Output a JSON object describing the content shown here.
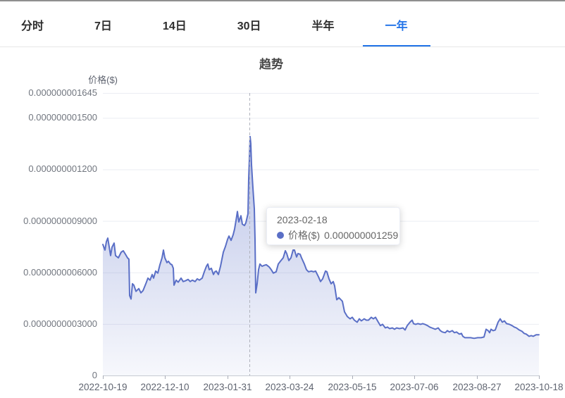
{
  "tabs": {
    "items": [
      {
        "label": "分时",
        "active": false
      },
      {
        "label": "7日",
        "active": false
      },
      {
        "label": "14日",
        "active": false
      },
      {
        "label": "30日",
        "active": false
      },
      {
        "label": "半年",
        "active": false
      },
      {
        "label": "一年",
        "active": true
      }
    ]
  },
  "chart_data": {
    "type": "area",
    "title": "趋势",
    "legend_position": "none",
    "grid": true,
    "y_axis": {
      "name": "价格($)",
      "max": 1645,
      "ticks": [
        {
          "label": "0",
          "value": 0
        },
        {
          "label": "0.0000000003000",
          "value": 300
        },
        {
          "label": "0.0000000006000",
          "value": 600
        },
        {
          "label": "0.0000000009000",
          "value": 900
        },
        {
          "label": "0.000000001200",
          "value": 1200
        },
        {
          "label": "0.000000001500",
          "value": 1500
        },
        {
          "label": "0.000000001645",
          "value": 1645
        }
      ]
    },
    "x_axis": {
      "start": "2022-10-19",
      "end": "2023-10-18",
      "span": 619,
      "ticks": [
        {
          "label": "2022-10-19",
          "pos": 0
        },
        {
          "label": "2022-12-10",
          "pos": 88
        },
        {
          "label": "2023-01-31",
          "pos": 177
        },
        {
          "label": "2023-03-24",
          "pos": 265
        },
        {
          "label": "2023-05-15",
          "pos": 354
        },
        {
          "label": "2023-07-06",
          "pos": 442
        },
        {
          "label": "2023-08-27",
          "pos": 531
        },
        {
          "label": "2023-10-18",
          "pos": 619
        }
      ]
    },
    "value_unit": "1e-12 $",
    "series": [
      {
        "name": "价格($)",
        "color": "#5a6fc6",
        "fill_top": "rgba(90,111,198,0.42)",
        "fill_bottom": "rgba(90,111,198,0.05)",
        "points": [
          [
            0,
            763
          ],
          [
            3,
            730
          ],
          [
            5,
            779
          ],
          [
            7,
            800
          ],
          [
            11,
            698
          ],
          [
            13,
            747
          ],
          [
            16,
            771
          ],
          [
            18,
            698
          ],
          [
            22,
            685
          ],
          [
            26,
            718
          ],
          [
            29,
            726
          ],
          [
            32,
            706
          ],
          [
            35,
            685
          ],
          [
            37,
            677
          ],
          [
            38,
            465
          ],
          [
            40,
            445
          ],
          [
            42,
            534
          ],
          [
            44,
            526
          ],
          [
            47,
            490
          ],
          [
            51,
            506
          ],
          [
            54,
            481
          ],
          [
            57,
            494
          ],
          [
            61,
            534
          ],
          [
            64,
            567
          ],
          [
            67,
            555
          ],
          [
            70,
            588
          ],
          [
            72,
            567
          ],
          [
            75,
            608
          ],
          [
            78,
            596
          ],
          [
            81,
            645
          ],
          [
            84,
            685
          ],
          [
            86,
            730
          ],
          [
            88,
            685
          ],
          [
            91,
            657
          ],
          [
            93,
            665
          ],
          [
            96,
            649
          ],
          [
            98,
            645
          ],
          [
            100,
            624
          ],
          [
            101,
            526
          ],
          [
            104,
            555
          ],
          [
            107,
            543
          ],
          [
            111,
            567
          ],
          [
            114,
            547
          ],
          [
            117,
            551
          ],
          [
            121,
            559
          ],
          [
            124,
            547
          ],
          [
            127,
            555
          ],
          [
            131,
            547
          ],
          [
            134,
            563
          ],
          [
            137,
            555
          ],
          [
            141,
            567
          ],
          [
            144,
            604
          ],
          [
            147,
            636
          ],
          [
            149,
            649
          ],
          [
            151,
            616
          ],
          [
            154,
            624
          ],
          [
            157,
            588
          ],
          [
            159,
            604
          ],
          [
            161,
            608
          ],
          [
            164,
            588
          ],
          [
            167,
            636
          ],
          [
            169,
            677
          ],
          [
            171,
            718
          ],
          [
            174,
            751
          ],
          [
            177,
            792
          ],
          [
            179,
            812
          ],
          [
            182,
            787
          ],
          [
            185,
            820
          ],
          [
            187,
            853
          ],
          [
            189,
            902
          ],
          [
            191,
            955
          ],
          [
            193,
            894
          ],
          [
            196,
            930
          ],
          [
            198,
            881
          ],
          [
            201,
            873
          ],
          [
            203,
            889
          ],
          [
            206,
            942
          ],
          [
            207,
            1146
          ],
          [
            208,
            1259
          ],
          [
            209,
            1391
          ],
          [
            210,
            1350
          ],
          [
            211,
            1228
          ],
          [
            213,
            1093
          ],
          [
            215,
            971
          ],
          [
            216,
            792
          ],
          [
            217,
            481
          ],
          [
            219,
            534
          ],
          [
            221,
            616
          ],
          [
            223,
            649
          ],
          [
            226,
            636
          ],
          [
            229,
            641
          ],
          [
            232,
            645
          ],
          [
            236,
            632
          ],
          [
            239,
            616
          ],
          [
            242,
            596
          ],
          [
            246,
            604
          ],
          [
            249,
            649
          ],
          [
            252,
            665
          ],
          [
            256,
            685
          ],
          [
            259,
            726
          ],
          [
            261,
            710
          ],
          [
            264,
            669
          ],
          [
            267,
            685
          ],
          [
            270,
            730
          ],
          [
            272,
            730
          ],
          [
            275,
            690
          ],
          [
            277,
            710
          ],
          [
            280,
            706
          ],
          [
            282,
            685
          ],
          [
            286,
            649
          ],
          [
            289,
            616
          ],
          [
            292,
            604
          ],
          [
            296,
            608
          ],
          [
            299,
            604
          ],
          [
            302,
            608
          ],
          [
            306,
            575
          ],
          [
            309,
            547
          ],
          [
            312,
            563
          ],
          [
            316,
            608
          ],
          [
            318,
            604
          ],
          [
            321,
            563
          ],
          [
            324,
            534
          ],
          [
            327,
            547
          ],
          [
            329,
            522
          ],
          [
            332,
            441
          ],
          [
            335,
            453
          ],
          [
            337,
            445
          ],
          [
            340,
            432
          ],
          [
            343,
            371
          ],
          [
            347,
            343
          ],
          [
            351,
            330
          ],
          [
            354,
            339
          ],
          [
            357,
            322
          ],
          [
            361,
            310
          ],
          [
            364,
            330
          ],
          [
            367,
            318
          ],
          [
            371,
            330
          ],
          [
            374,
            322
          ],
          [
            377,
            322
          ],
          [
            381,
            339
          ],
          [
            384,
            330
          ],
          [
            387,
            339
          ],
          [
            391,
            310
          ],
          [
            394,
            290
          ],
          [
            397,
            298
          ],
          [
            401,
            277
          ],
          [
            404,
            282
          ],
          [
            407,
            273
          ],
          [
            411,
            277
          ],
          [
            414,
            269
          ],
          [
            417,
            277
          ],
          [
            421,
            273
          ],
          [
            426,
            277
          ],
          [
            429,
            265
          ],
          [
            432,
            290
          ],
          [
            436,
            310
          ],
          [
            439,
            322
          ],
          [
            441,
            302
          ],
          [
            444,
            298
          ],
          [
            447,
            302
          ],
          [
            451,
            298
          ],
          [
            454,
            302
          ],
          [
            457,
            298
          ],
          [
            461,
            290
          ],
          [
            464,
            282
          ],
          [
            467,
            277
          ],
          [
            472,
            269
          ],
          [
            476,
            277
          ],
          [
            479,
            261
          ],
          [
            482,
            253
          ],
          [
            486,
            249
          ],
          [
            489,
            261
          ],
          [
            492,
            253
          ],
          [
            496,
            261
          ],
          [
            499,
            249
          ],
          [
            502,
            253
          ],
          [
            506,
            241
          ],
          [
            509,
            245
          ],
          [
            511,
            228
          ],
          [
            514,
            220
          ],
          [
            517,
            220
          ],
          [
            522,
            220
          ],
          [
            527,
            216
          ],
          [
            532,
            220
          ],
          [
            537,
            220
          ],
          [
            541,
            224
          ],
          [
            544,
            269
          ],
          [
            547,
            261
          ],
          [
            549,
            249
          ],
          [
            551,
            269
          ],
          [
            554,
            261
          ],
          [
            557,
            265
          ],
          [
            561,
            310
          ],
          [
            564,
            330
          ],
          [
            567,
            310
          ],
          [
            570,
            318
          ],
          [
            573,
            302
          ],
          [
            577,
            298
          ],
          [
            581,
            290
          ],
          [
            584,
            282
          ],
          [
            587,
            277
          ],
          [
            591,
            265
          ],
          [
            595,
            257
          ],
          [
            598,
            245
          ],
          [
            601,
            241
          ],
          [
            605,
            228
          ],
          [
            608,
            232
          ],
          [
            611,
            228
          ],
          [
            615,
            237
          ],
          [
            619,
            237
          ]
        ]
      }
    ],
    "tooltip": {
      "date": "2023-02-18",
      "series_label": "价格($)",
      "value_label": "0.000000001259",
      "value": 1259,
      "pos": 208
    }
  }
}
